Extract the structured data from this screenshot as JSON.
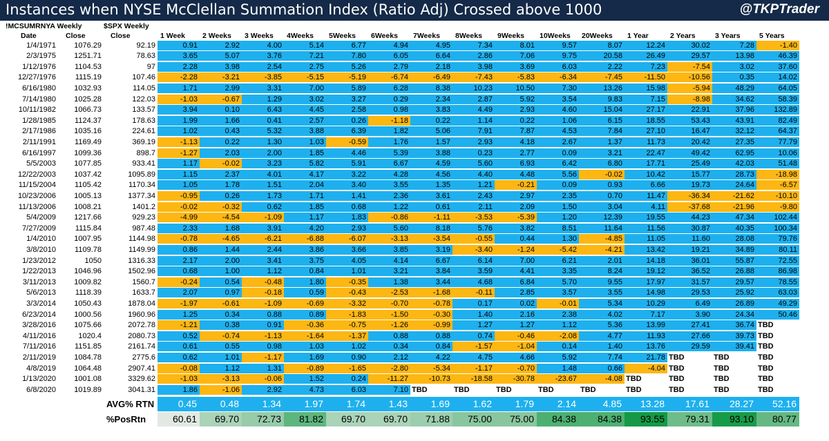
{
  "title": "Instances when NYSE McClellan Summation Index (Ratio Adj) Crossed above 1000",
  "handle": "@TKPTrader",
  "chart_data": {
    "type": "table",
    "series_headers": [
      "!MCSUMRNYA Weekly",
      "$SPX Weekly"
    ],
    "columns": [
      "Date",
      "Close",
      "Close",
      "1 Week",
      "2 Weeks",
      "3 Weeks",
      "4Weeks",
      "5Weeks",
      "6Weeks",
      "7Weeks",
      "8Weeks",
      "9Weeks",
      "10Weeks",
      "20Weeks",
      "1 Year",
      "2 Years",
      "3 Years",
      "5 Years"
    ],
    "rows": [
      [
        "1/4/1971",
        "1076.29",
        "92.19",
        "0.91",
        "2.92",
        "4.00",
        "5.14",
        "6.77",
        "4.94",
        "4.95",
        "7.34",
        "8.01",
        "9.57",
        "8.07",
        "12.24",
        "30.02",
        "7.28",
        "-1.40"
      ],
      [
        "2/3/1975",
        "1251.71",
        "78.63",
        "3.65",
        "5.07",
        "3.76",
        "7.21",
        "7.80",
        "6.05",
        "6.64",
        "2.86",
        "7.06",
        "9.75",
        "20.58",
        "26.49",
        "29.57",
        "13.98",
        "46.39"
      ],
      [
        "1/12/1976",
        "1104.53",
        "97",
        "2.28",
        "3.98",
        "2.54",
        "2.75",
        "5.26",
        "2.79",
        "2.18",
        "3.98",
        "3.69",
        "6.03",
        "2.22",
        "7.23",
        "-7.54",
        "3.02",
        "37.60"
      ],
      [
        "12/27/1976",
        "1115.19",
        "107.46",
        "-2.28",
        "-3.21",
        "-3.85",
        "-5.15",
        "-5.19",
        "-6.74",
        "-6.49",
        "-7.43",
        "-5.83",
        "-6.34",
        "-7.45",
        "-11.50",
        "-10.56",
        "0.35",
        "14.02"
      ],
      [
        "6/16/1980",
        "1032.93",
        "114.05",
        "1.71",
        "2.99",
        "3.31",
        "7.00",
        "5.89",
        "6.28",
        "8.38",
        "10.23",
        "10.50",
        "7.30",
        "13.26",
        "15.98",
        "-5.94",
        "48.29",
        "64.05"
      ],
      [
        "7/14/1980",
        "1025.28",
        "122.03",
        "-1.03",
        "-0.67",
        "1.29",
        "3.02",
        "3.27",
        "0.29",
        "2.34",
        "2.87",
        "5.92",
        "3.54",
        "9.83",
        "7.15",
        "-8.98",
        "34.62",
        "58.39"
      ],
      [
        "10/11/1982",
        "1066.73",
        "133.57",
        "3.94",
        "0.10",
        "6.43",
        "4.45",
        "2.58",
        "0.98",
        "3.83",
        "4.49",
        "2.93",
        "4.60",
        "15.04",
        "27.17",
        "22.91",
        "37.96",
        "132.89"
      ],
      [
        "1/28/1985",
        "1124.37",
        "178.63",
        "1.99",
        "1.66",
        "0.41",
        "2.57",
        "0.26",
        "-1.18",
        "0.22",
        "1.14",
        "0.22",
        "1.06",
        "6.15",
        "18.55",
        "53.43",
        "43.91",
        "82.49"
      ],
      [
        "2/17/1986",
        "1035.16",
        "224.61",
        "1.02",
        "0.43",
        "5.32",
        "3.88",
        "6.39",
        "1.82",
        "5.06",
        "7.91",
        "7.87",
        "4.53",
        "7.84",
        "27.10",
        "16.47",
        "32.12",
        "64.37"
      ],
      [
        "2/11/1991",
        "1169.49",
        "369.19",
        "-1.13",
        "0.22",
        "1.30",
        "1.03",
        "-0.59",
        "1.76",
        "1.57",
        "2.93",
        "4.18",
        "2.67",
        "1.37",
        "11.73",
        "20.42",
        "27.35",
        "77.79"
      ],
      [
        "6/16/1997",
        "1099.36",
        "898.7",
        "-1.27",
        "2.03",
        "2.00",
        "1.85",
        "4.46",
        "5.39",
        "3.88",
        "0.23",
        "2.77",
        "0.09",
        "3.21",
        "22.47",
        "49.42",
        "62.95",
        "10.06"
      ],
      [
        "5/5/2003",
        "1077.85",
        "933.41",
        "1.17",
        "-0.02",
        "3.23",
        "5.82",
        "5.91",
        "6.67",
        "4.59",
        "5.60",
        "6.93",
        "6.42",
        "6.80",
        "17.71",
        "25.49",
        "42.03",
        "51.48"
      ],
      [
        "12/22/2003",
        "1037.42",
        "1095.89",
        "1.15",
        "2.37",
        "4.01",
        "4.17",
        "3.22",
        "4.28",
        "4.56",
        "4.40",
        "4.48",
        "5.56",
        "-0.02",
        "10.42",
        "15.77",
        "28.73",
        "-18.98"
      ],
      [
        "11/15/2004",
        "1105.42",
        "1170.34",
        "1.05",
        "1.78",
        "1.51",
        "2.04",
        "3.40",
        "3.55",
        "1.35",
        "1.21",
        "-0.21",
        "0.09",
        "0.93",
        "6.66",
        "19.73",
        "24.64",
        "-6.57"
      ],
      [
        "10/23/2006",
        "1005.13",
        "1377.34",
        "-0.95",
        "0.26",
        "1.73",
        "1.71",
        "1.41",
        "2.36",
        "3.61",
        "2.43",
        "2.97",
        "2.35",
        "0.70",
        "11.47",
        "-36.34",
        "-21.62",
        "-10.10"
      ],
      [
        "11/13/2006",
        "1008.21",
        "1401.2",
        "-0.02",
        "-0.32",
        "0.62",
        "1.85",
        "0.68",
        "1.22",
        "0.61",
        "2.11",
        "2.09",
        "1.50",
        "3.04",
        "4.11",
        "-37.68",
        "-21.96",
        "-9.80"
      ],
      [
        "5/4/2009",
        "1217.66",
        "929.23",
        "-4.99",
        "-4.54",
        "-1.09",
        "1.17",
        "1.83",
        "-0.86",
        "-1.11",
        "-3.53",
        "-5.39",
        "1.20",
        "12.39",
        "19.55",
        "44.23",
        "47.34",
        "102.44"
      ],
      [
        "7/27/2009",
        "1115.84",
        "987.48",
        "2.33",
        "1.68",
        "3.91",
        "4.20",
        "2.93",
        "5.60",
        "8.18",
        "5.76",
        "3.82",
        "8.51",
        "11.64",
        "11.56",
        "30.87",
        "40.35",
        "100.34"
      ],
      [
        "1/4/2010",
        "1007.95",
        "1144.98",
        "-0.78",
        "-4.65",
        "-6.21",
        "-6.88",
        "-6.07",
        "-3.13",
        "-3.54",
        "-0.55",
        "0.44",
        "1.30",
        "-4.85",
        "11.05",
        "11.60",
        "28.08",
        "79.76"
      ],
      [
        "3/8/2010",
        "1109.78",
        "1149.99",
        "0.86",
        "1.44",
        "2.44",
        "3.86",
        "3.66",
        "3.85",
        "3.19",
        "-3.40",
        "-1.24",
        "-5.42",
        "-4.21",
        "13.42",
        "19.21",
        "34.89",
        "80.11"
      ],
      [
        "1/23/2012",
        "1050",
        "1316.33",
        "2.17",
        "2.00",
        "3.41",
        "3.75",
        "4.05",
        "4.14",
        "6.67",
        "6.14",
        "7.00",
        "6.21",
        "2.01",
        "14.18",
        "36.01",
        "55.87",
        "72.55"
      ],
      [
        "1/22/2013",
        "1046.96",
        "1502.96",
        "0.68",
        "1.00",
        "1.12",
        "0.84",
        "1.01",
        "3.21",
        "3.84",
        "3.59",
        "4.41",
        "3.35",
        "8.24",
        "19.12",
        "36.52",
        "26.88",
        "86.98"
      ],
      [
        "3/11/2013",
        "1009.82",
        "1560.7",
        "-0.24",
        "0.54",
        "-0.48",
        "1.80",
        "-0.35",
        "1.38",
        "3.44",
        "4.68",
        "6.84",
        "5.70",
        "9.55",
        "17.97",
        "31.57",
        "29.57",
        "78.55"
      ],
      [
        "5/6/2013",
        "1118.39",
        "1633.7",
        "2.07",
        "0.97",
        "-0.18",
        "0.59",
        "-0.43",
        "-2.53",
        "-1.68",
        "-0.11",
        "2.85",
        "3.57",
        "3.55",
        "14.98",
        "29.53",
        "25.92",
        "63.03"
      ],
      [
        "3/3/2014",
        "1050.43",
        "1878.04",
        "-1.97",
        "-0.61",
        "-1.09",
        "-0.69",
        "-3.32",
        "-0.70",
        "-0.78",
        "0.17",
        "0.02",
        "-0.01",
        "5.34",
        "10.29",
        "6.49",
        "26.89",
        "49.29"
      ],
      [
        "6/23/2014",
        "1000.56",
        "1960.96",
        "1.25",
        "0.34",
        "0.88",
        "0.89",
        "-1.83",
        "-1.50",
        "-0.30",
        "1.40",
        "2.16",
        "2.38",
        "4.02",
        "7.17",
        "3.90",
        "24.34",
        "50.46"
      ],
      [
        "3/28/2016",
        "1075.66",
        "2072.78",
        "-1.21",
        "0.38",
        "0.91",
        "-0.36",
        "-0.75",
        "-1.26",
        "-0.99",
        "1.27",
        "1.27",
        "1.12",
        "5.36",
        "13.99",
        "27.41",
        "36.74",
        "TBD"
      ],
      [
        "4/11/2016",
        "1020.4",
        "2080.73",
        "0.52",
        "-0.74",
        "-1.13",
        "-1.64",
        "-1.37",
        "0.88",
        "0.88",
        "0.74",
        "-0.46",
        "-2.08",
        "4.77",
        "11.93",
        "27.66",
        "39.73",
        "TBD"
      ],
      [
        "7/11/2016",
        "1151.85",
        "2161.74",
        "0.61",
        "0.55",
        "0.98",
        "1.03",
        "1.02",
        "0.34",
        "0.84",
        "-1.57",
        "-1.04",
        "0.14",
        "1.40",
        "13.76",
        "29.59",
        "39.41",
        "TBD"
      ],
      [
        "2/11/2019",
        "1084.78",
        "2775.6",
        "0.62",
        "1.01",
        "-1.17",
        "1.69",
        "0.90",
        "2.12",
        "4.22",
        "4.75",
        "4.66",
        "5.92",
        "7.74",
        "21.78",
        "TBD",
        "TBD",
        "TBD"
      ],
      [
        "4/8/2019",
        "1064.48",
        "2907.41",
        "-0.08",
        "1.12",
        "1.31",
        "-0.89",
        "-1.65",
        "-2.80",
        "-5.34",
        "-1.17",
        "-0.70",
        "1.48",
        "0.66",
        "-4.04",
        "TBD",
        "TBD",
        "TBD"
      ],
      [
        "1/13/2020",
        "1001.08",
        "3329.62",
        "-1.03",
        "-3.13",
        "-0.06",
        "1.52",
        "0.24",
        "-11.27",
        "-10.73",
        "-18.58",
        "-30.78",
        "-23.67",
        "-4.08",
        "TBD",
        "TBD",
        "TBD",
        "TBD"
      ],
      [
        "6/8/2020",
        "1019.89",
        "3041.31",
        "1.86",
        "-1.06",
        "2.92",
        "4.73",
        "6.03",
        "7.10",
        "TBD",
        "TBD",
        "TBD",
        "TBD",
        "TBD",
        "TBD",
        "TBD",
        "TBD",
        "TBD"
      ]
    ],
    "avg_label": "AVG% RTN",
    "avg": [
      "0.45",
      "0.48",
      "1.34",
      "1.97",
      "1.74",
      "1.43",
      "1.69",
      "1.62",
      "1.79",
      "2.14",
      "4.85",
      "13.28",
      "17.61",
      "28.27",
      "52.16"
    ],
    "pos_label": "%PosRtn",
    "pos": [
      "60.61",
      "69.70",
      "72.73",
      "81.82",
      "69.70",
      "69.70",
      "71.88",
      "75.00",
      "75.00",
      "84.38",
      "84.38",
      "93.55",
      "79.31",
      "93.10",
      "80.77"
    ],
    "colors": {
      "positive": "#1eb0ee",
      "negative": "#fdb713",
      "title_bg": "#142a48",
      "avg_bg": "#1eb0ee"
    }
  }
}
